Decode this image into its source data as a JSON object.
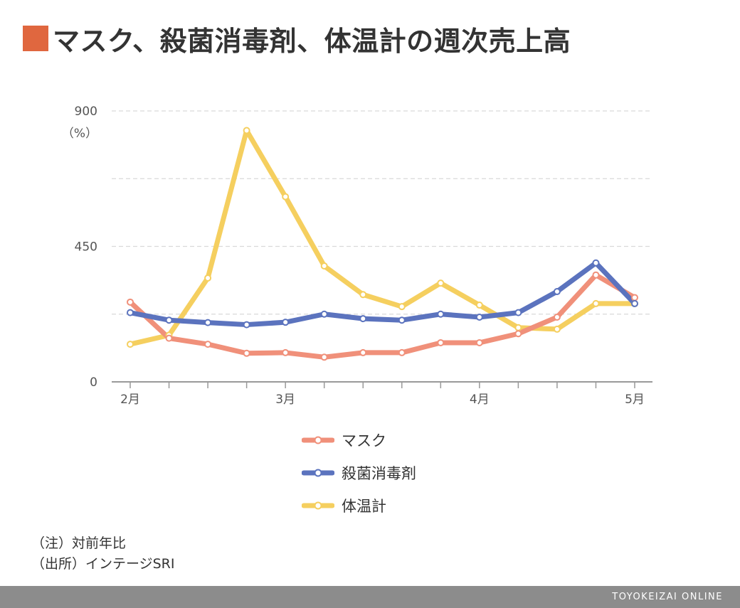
{
  "title": "マスク、殺菌消毒剤、体温計の週次売上高",
  "colors": {
    "accent": "#e0673f",
    "grid": "#d9d9d9",
    "axis": "#999999",
    "footer_bg": "#8c8c8c"
  },
  "notes": [
    "（注）対前年比",
    "（出所）インテージSRI"
  ],
  "footer": {
    "brand": "TOYOKEIZAI ONLINE"
  },
  "chart_data": {
    "type": "line",
    "x": [
      0,
      1,
      2,
      3,
      4,
      5,
      6,
      7,
      8,
      9,
      10,
      11,
      12,
      13
    ],
    "x_tick_labels": [
      {
        "x": 0,
        "label": "2月"
      },
      {
        "x": 4,
        "label": "3月"
      },
      {
        "x": 9,
        "label": "4月"
      },
      {
        "x": 13,
        "label": "5月"
      }
    ],
    "ylim": [
      0,
      900
    ],
    "y_ticks": [
      0,
      450,
      900
    ],
    "y_tick_labels": [
      "0",
      "450",
      "900"
    ],
    "y_unit": "（%）",
    "grid": true,
    "legend_position": "bottom",
    "series": [
      {
        "name": "マスク",
        "color": "#f0907a",
        "values": [
          265,
          145,
          125,
          95,
          97,
          82,
          97,
          97,
          130,
          130,
          160,
          215,
          355,
          280
        ]
      },
      {
        "name": "殺菌消毒剤",
        "color": "#5b73be",
        "values": [
          230,
          205,
          197,
          190,
          198,
          225,
          210,
          205,
          225,
          215,
          230,
          300,
          395,
          260
        ]
      },
      {
        "name": "体温計",
        "color": "#f5cf5f",
        "values": [
          125,
          155,
          345,
          835,
          615,
          385,
          290,
          250,
          328,
          255,
          180,
          175,
          260,
          260
        ]
      }
    ]
  }
}
